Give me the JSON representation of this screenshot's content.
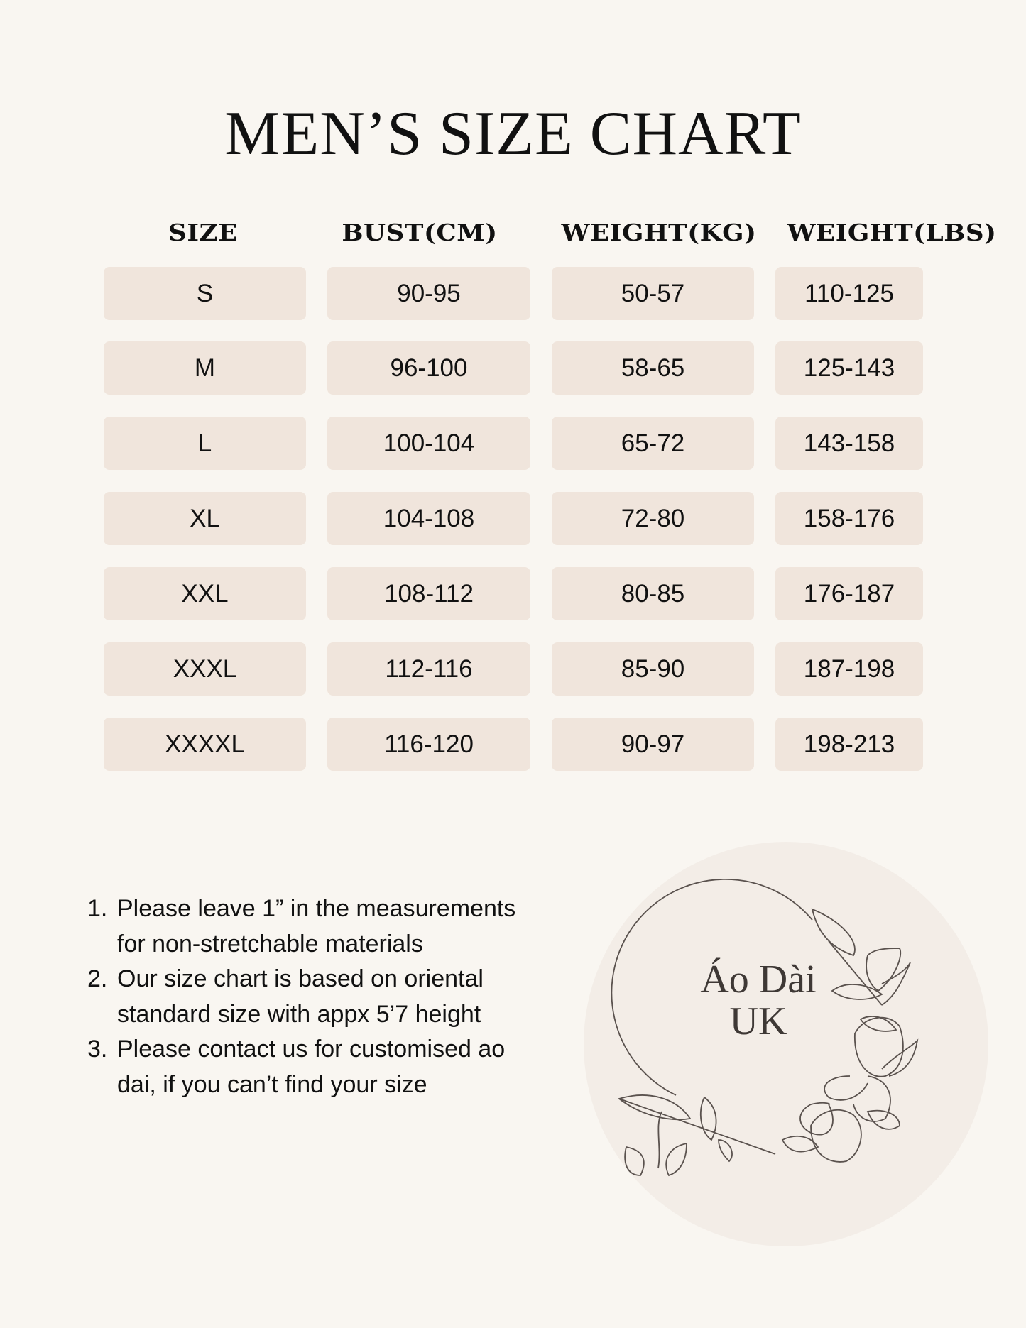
{
  "title": "MEN’S SIZE CHART",
  "table": {
    "headers": [
      "SIZE",
      "BUST(CM)",
      "WEIGHT(KG)",
      "WEIGHT(LBS)"
    ],
    "rows": [
      [
        "S",
        "90-95",
        "50-57",
        "110-125"
      ],
      [
        "M",
        "96-100",
        "58-65",
        "125-143"
      ],
      [
        "L",
        "100-104",
        "65-72",
        "143-158"
      ],
      [
        "XL",
        "104-108",
        "72-80",
        "158-176"
      ],
      [
        "XXL",
        "108-112",
        "80-85",
        "176-187"
      ],
      [
        "XXXL",
        "112-116",
        "85-90",
        "187-198"
      ],
      [
        "XXXXL",
        "116-120",
        "90-97",
        "198-213"
      ]
    ]
  },
  "notes": [
    {
      "num": "1.",
      "lines": [
        "Please leave 1” in the measurements",
        "for non-stretchable materials"
      ]
    },
    {
      "num": "2.",
      "lines": [
        "Our size chart is based on oriental",
        "standard size with appx 5’7 height"
      ]
    },
    {
      "num": "3.",
      "lines": [
        "Please contact us for customised ao",
        "dai, if you can’t find your size"
      ]
    }
  ],
  "logo": {
    "line1": "Áo Dài",
    "line2": "UK"
  },
  "colors": {
    "background": "#f9f6f1",
    "cell": "#f0e5dc",
    "logo_circle": "#f3ede7",
    "logo_text": "#3e3835"
  }
}
